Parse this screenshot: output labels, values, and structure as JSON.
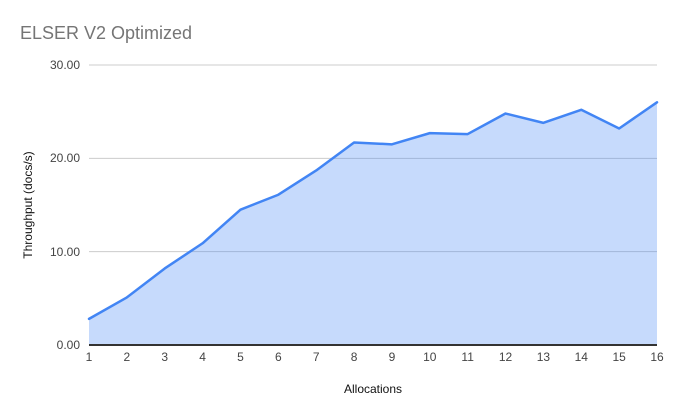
{
  "chart_data": {
    "type": "area",
    "title": "ELSER V2 Optimized",
    "xlabel": "Allocations",
    "ylabel": "Throughput (docs/s)",
    "x": [
      1,
      2,
      3,
      4,
      5,
      6,
      7,
      8,
      9,
      10,
      11,
      12,
      13,
      14,
      15,
      16
    ],
    "x_tick_labels": [
      "1",
      "2",
      "3",
      "4",
      "5",
      "6",
      "7",
      "8",
      "9",
      "10",
      "11",
      "12",
      "13",
      "14",
      "15",
      "16"
    ],
    "values": [
      2.8,
      5.1,
      8.2,
      10.9,
      14.5,
      16.1,
      18.7,
      21.7,
      21.5,
      22.7,
      22.6,
      24.8,
      23.8,
      25.2,
      23.2,
      26.0
    ],
    "xlim": [
      1,
      16
    ],
    "ylim": [
      0,
      30
    ],
    "yticks": [
      0,
      10,
      20,
      30
    ],
    "ytick_labels": [
      "0.00",
      "10.00",
      "20.00",
      "30.00"
    ],
    "grid": true,
    "legend": "none",
    "colors": {
      "line": "#4285f4",
      "fill_opacity": 0.3,
      "grid": "#cccccc",
      "axis": "#333333",
      "title": "#757575",
      "tick": "#444444",
      "axis_title": "#111111",
      "background": "#ffffff"
    }
  }
}
